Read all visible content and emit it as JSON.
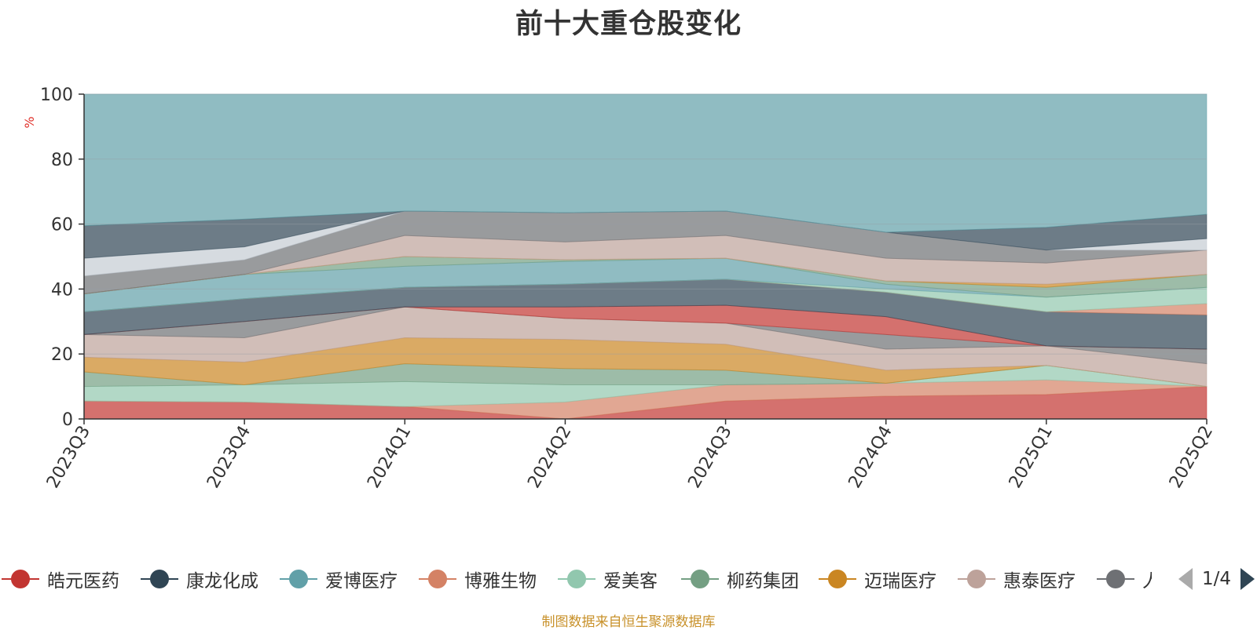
{
  "title": "前十大重仓股变化",
  "source": "制图数据来自恒生聚源数据库",
  "pager": {
    "text": "1/4",
    "prev_icon": "triangle-left-icon",
    "next_icon": "triangle-right-icon"
  },
  "legend": [
    {
      "name": "皓元医药",
      "color": "#c23531"
    },
    {
      "name": "康龙化成",
      "color": "#2f4554"
    },
    {
      "name": "爱博医疗",
      "color": "#61a0a8"
    },
    {
      "name": "博雅生物",
      "color": "#d48265"
    },
    {
      "name": "爱美客",
      "color": "#91c7ae"
    },
    {
      "name": "柳药集团",
      "color": "#749f83"
    },
    {
      "name": "迈瑞医疗",
      "color": "#ca8622"
    },
    {
      "name": "惠泰医疗",
      "color": "#bda29a"
    },
    {
      "name": "人福医药",
      "color": "#6e7074"
    }
  ],
  "chart_data": {
    "type": "area",
    "stacked": true,
    "ylabel": "%",
    "ylim": [
      0,
      100
    ],
    "yticks": [
      0,
      20,
      40,
      60,
      80,
      100
    ],
    "categories": [
      "2023Q3",
      "2023Q4",
      "2024Q1",
      "2024Q2",
      "2024Q3",
      "2024Q4",
      "2025Q1",
      "2025Q2"
    ],
    "grid": true,
    "bands": [
      {
        "bottom": [
          0,
          0,
          0,
          0,
          0,
          0,
          0,
          0
        ],
        "top": [
          5.5,
          5.2,
          3.8,
          0,
          5.5,
          7,
          7.5,
          10
        ],
        "color": "#c23531"
      },
      {
        "bottom": [
          5.5,
          5.2,
          3.8,
          0,
          5.5,
          7,
          7.5,
          10
        ],
        "top": [
          5.5,
          5.2,
          3.8,
          5.2,
          10.5,
          11,
          12,
          10
        ],
        "color": "#d48265"
      },
      {
        "bottom": [
          5.5,
          5.2,
          3.8,
          5.2,
          10.5,
          11,
          12,
          10
        ],
        "top": [
          10,
          10.5,
          11.5,
          10.5,
          10.5,
          11,
          16.5,
          10
        ],
        "color": "#91c7ae"
      },
      {
        "bottom": [
          10,
          10.5,
          11.5,
          10.5,
          10.5,
          11,
          16.5,
          10
        ],
        "top": [
          14.5,
          10.5,
          17,
          15.5,
          15,
          11,
          16.5,
          10
        ],
        "color": "#749f83"
      },
      {
        "bottom": [
          14.5,
          10.5,
          17,
          15.5,
          15,
          11,
          16.5,
          10
        ],
        "top": [
          19,
          17.5,
          25,
          24.5,
          23,
          15,
          16.5,
          10
        ],
        "color": "#ca8622"
      },
      {
        "bottom": [
          19,
          17.5,
          25,
          24.5,
          23,
          15,
          16.5,
          10
        ],
        "top": [
          26,
          25,
          34.5,
          31,
          29.5,
          21.5,
          22.5,
          17
        ],
        "color": "#bda29a"
      },
      {
        "bottom": [
          26,
          25,
          34.5,
          31,
          29.5,
          21.5,
          22.5,
          17
        ],
        "top": [
          26,
          30,
          34.5,
          31,
          29.5,
          26,
          22.5,
          21.5
        ],
        "color": "#6e7074"
      },
      {
        "bottom": [
          26,
          30,
          34.5,
          31,
          29.5,
          26,
          22.5,
          21.5
        ],
        "top": [
          26,
          30,
          34.5,
          34.5,
          35,
          31.5,
          22.5,
          21.5
        ],
        "color": "#c23531"
      },
      {
        "bottom": [
          26,
          30,
          34.5,
          34.5,
          35,
          31.5,
          22.5,
          21.5
        ],
        "top": [
          33,
          37,
          40.5,
          41.5,
          43,
          39,
          33,
          32
        ],
        "color": "#2f4554"
      },
      {
        "bottom": [
          33,
          37,
          40.5,
          41.5,
          43,
          39,
          33,
          32
        ],
        "top": [
          33,
          37,
          40.5,
          41.5,
          43,
          39,
          33,
          35.5
        ],
        "color": "#d48265"
      },
      {
        "bottom": [
          33,
          37,
          40.5,
          41.5,
          43,
          39,
          33,
          35.5
        ],
        "top": [
          33,
          37,
          40.5,
          41.5,
          43,
          40,
          37.5,
          40.5
        ],
        "color": "#91c7ae"
      },
      {
        "bottom": [
          33,
          37,
          40.5,
          41.5,
          43,
          40,
          37.5,
          40.5
        ],
        "top": [
          38.5,
          44.5,
          47,
          48.5,
          49.5,
          41.5,
          37.5,
          40.5
        ],
        "color": "#61a0a8"
      },
      {
        "bottom": [
          38.5,
          44.5,
          47,
          48.5,
          49.5,
          41.5,
          37.5,
          40.5
        ],
        "top": [
          38.5,
          44.5,
          50,
          49,
          49.5,
          42.5,
          40.5,
          44.5
        ],
        "color": "#749f83"
      },
      {
        "bottom": [
          38.5,
          44.5,
          50,
          49,
          49.5,
          42.5,
          40.5,
          44.5
        ],
        "top": [
          38.5,
          44.5,
          50,
          49,
          49.5,
          42.5,
          41.5,
          44.5
        ],
        "color": "#ca8622"
      },
      {
        "bottom": [
          38.5,
          44.5,
          50,
          49,
          49.5,
          42.5,
          41.5,
          44.5
        ],
        "top": [
          38.5,
          44.5,
          56.5,
          54.5,
          56.5,
          49.5,
          48,
          52
        ],
        "color": "#bda29a"
      },
      {
        "bottom": [
          38.5,
          44.5,
          56.5,
          54.5,
          56.5,
          49.5,
          48,
          52
        ],
        "top": [
          44,
          49,
          64,
          63.5,
          64,
          57.5,
          52,
          52
        ],
        "color": "#6e7074"
      },
      {
        "bottom": [
          44,
          49,
          64,
          63.5,
          64,
          57.5,
          52,
          52
        ],
        "top": [
          49.5,
          53,
          64,
          63.5,
          64,
          57.5,
          52,
          55.5
        ],
        "color": "#c4ccd3"
      },
      {
        "bottom": [
          49.5,
          53,
          64,
          63.5,
          64,
          57.5,
          52,
          55.5
        ],
        "top": [
          59.5,
          61.5,
          64,
          63.5,
          64,
          57.5,
          59,
          63
        ],
        "color": "#2f4554"
      },
      {
        "bottom": [
          59.5,
          61.5,
          64,
          63.5,
          64,
          57.5,
          59,
          63
        ],
        "top": [
          100,
          100,
          100,
          100,
          100,
          100,
          100,
          100
        ],
        "color": "#61a0a8"
      }
    ]
  }
}
